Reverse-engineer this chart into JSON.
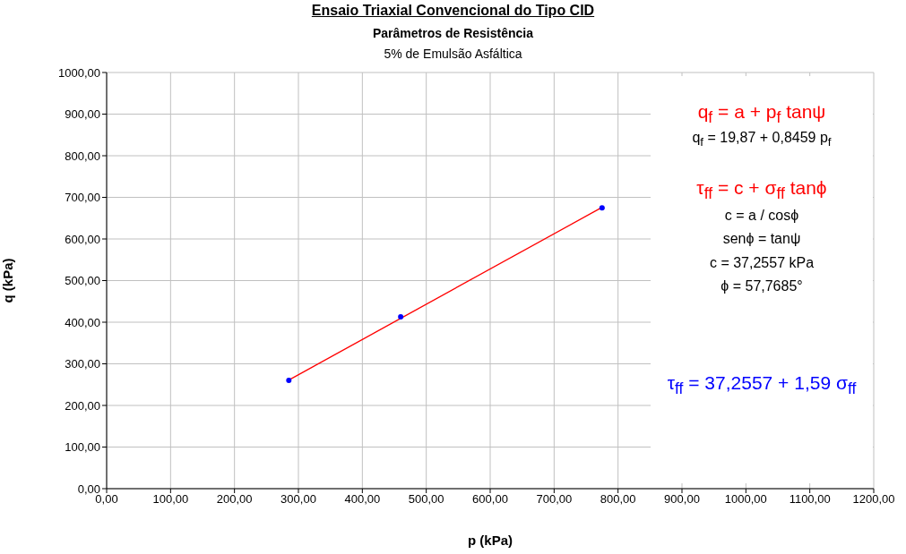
{
  "chart_data": {
    "type": "scatter",
    "title": "Ensaio Triaxial Convencional do Tipo CID",
    "subtitle": "Parâmetros de Resistência",
    "xlabel": "p (kPa)",
    "ylabel": "q (kPa)",
    "annotations": [
      "5% de Emulsão Asfáltica",
      "q$_{f}$ = a + p$_{f}$ tanψ",
      "q$_{f}$ = 19,87 + 0,8459 p$_{f}$",
      "τ$_{ff}$ = c + σ$_{ff}$ tanϕ",
      "c = a / cosϕ",
      "senϕ = tanψ",
      "c = 37,2557 kPa",
      "ϕ = 57,7685°",
      "τ$_{ff}$ = 37,2557 + 1,59 σ$_{ff}$"
    ],
    "series": [
      {
        "color": "#0000ff",
        "marker": "circle",
        "x": [
          285,
          460,
          775
        ],
        "values": [
          260,
          413,
          675
        ]
      },
      {
        "type": "line",
        "color": "#ff0000",
        "marker": "none",
        "x": [
          285,
          775
        ],
        "values": [
          261,
          676
        ]
      }
    ],
    "xlim": [
      0,
      1200
    ],
    "ylim": [
      0,
      1000
    ],
    "xticks": [
      {
        "value": 0,
        "label": "0,00"
      },
      {
        "value": 100,
        "label": "100,00"
      },
      {
        "value": 200,
        "label": "200,00"
      },
      {
        "value": 300,
        "label": "300,00"
      },
      {
        "value": 400,
        "label": "400,00"
      },
      {
        "value": 500,
        "label": "500,00"
      },
      {
        "value": 600,
        "label": "600,00"
      },
      {
        "value": 700,
        "label": "700,00"
      },
      {
        "value": 800,
        "label": "800,00"
      },
      {
        "value": 900,
        "label": "900,00"
      },
      {
        "value": 1000,
        "label": "1000,00"
      },
      {
        "value": 1100,
        "label": "1100,00"
      },
      {
        "value": 1200,
        "label": "1200,00"
      }
    ],
    "yticks": [
      {
        "value": 0,
        "label": "0,00"
      },
      {
        "value": 100,
        "label": "100,00"
      },
      {
        "value": 200,
        "label": "200,00"
      },
      {
        "value": 300,
        "label": "300,00"
      },
      {
        "value": 400,
        "label": "400,00"
      },
      {
        "value": 500,
        "label": "500,00"
      },
      {
        "value": 600,
        "label": "600,00"
      },
      {
        "value": 700,
        "label": "700,00"
      },
      {
        "value": 800,
        "label": "800,00"
      },
      {
        "value": 900,
        "label": "900,00"
      },
      {
        "value": 1000,
        "label": "1000,00"
      }
    ],
    "grid": true
  }
}
